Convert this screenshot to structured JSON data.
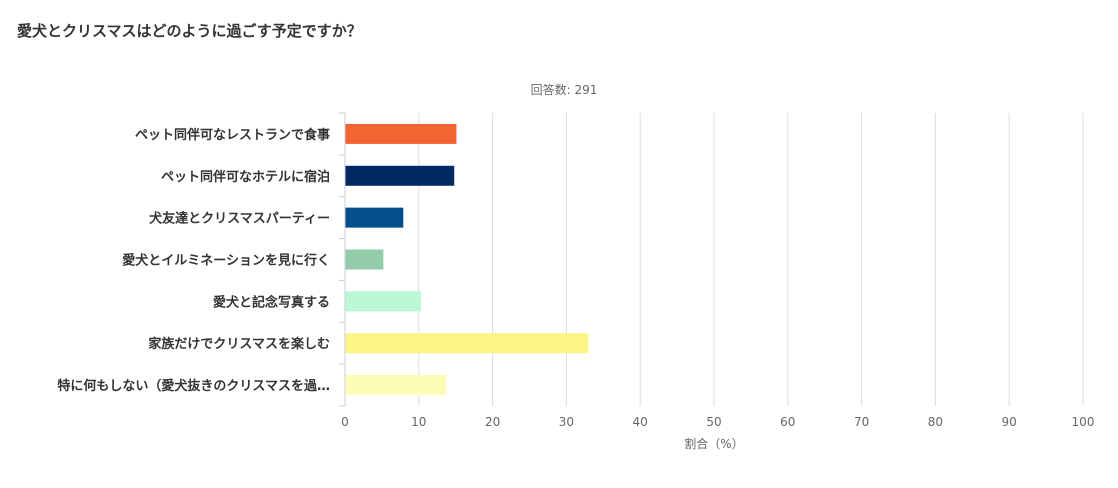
{
  "question": {
    "title": "愛犬とクリスマスはどのように過ごす予定ですか？"
  },
  "chart_data": {
    "type": "bar",
    "orientation": "horizontal",
    "subtitle": "回答数: 291",
    "xlabel": "割合（%）",
    "ylabel": "",
    "xlim": [
      0,
      100
    ],
    "x_ticks": [
      0,
      10,
      20,
      30,
      40,
      50,
      60,
      70,
      80,
      90,
      100
    ],
    "grid": true,
    "categories": [
      "ペット同伴可なレストランで食事",
      "ペット同伴可なホテルに宿泊",
      "犬友達とクリスマスパーティー",
      "愛犬とイルミネーションを見に行く",
      "愛犬と記念写真する",
      "家族だけでクリスマスを楽しむ",
      "特に何もしない（愛犬抜きのクリスマスを過…"
    ],
    "values": [
      15.1,
      14.8,
      7.9,
      5.2,
      10.3,
      33.0,
      13.7
    ],
    "colors": [
      "#f26533",
      "#012a62",
      "#044e8c",
      "#92cca8",
      "#baf8d6",
      "#fbf585",
      "#fefdb7"
    ]
  }
}
